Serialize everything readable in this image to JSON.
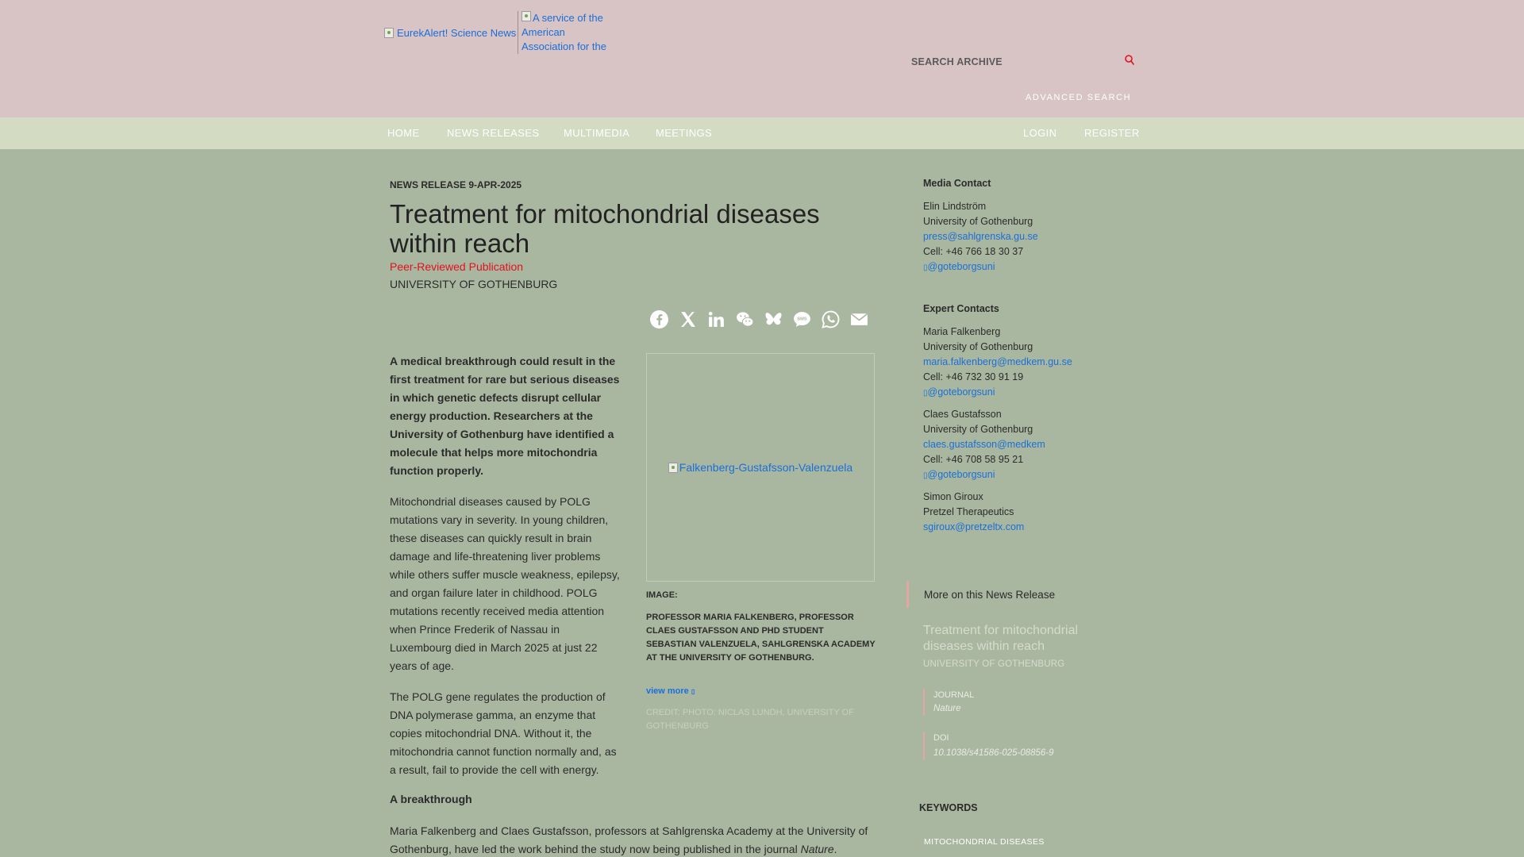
{
  "header": {
    "logo_alt": "EurekAlert! Science News",
    "aaas_alt": "A service of the American Association for the",
    "search_label": "SEARCH ARCHIVE",
    "advanced_search": "ADVANCED SEARCH"
  },
  "nav": {
    "home": "HOME",
    "news_releases": "NEWS RELEASES",
    "multimedia": "MULTIMEDIA",
    "meetings": "MEETINGS",
    "login": "LOGIN",
    "register": "REGISTER"
  },
  "article": {
    "meta": "NEWS RELEASE 9-APR-2025",
    "title": "Treatment for mitochondrial diseases within reach",
    "peer_reviewed": "Peer-Reviewed Publication",
    "institution": "UNIVERSITY OF GOTHENBURG",
    "lead": "A medical breakthrough could result in the first treatment for rare but serious diseases in which genetic defects disrupt cellular energy production. Researchers at the University of Gothenburg have identified a molecule that helps more mitochondria function properly.",
    "para1": "Mitochondrial diseases caused by POLG mutations vary in severity. In young children, these diseases can quickly result in brain damage and life-threatening liver problems while others suffer muscle weakness, epilepsy, and organ failure later in childhood. POLG mutations recently received media attention when Prince Frederik of Nassau in Luxembourg died in March 2025 at just 22 years of age.",
    "para2": "The POLG gene regulates the production of DNA polymerase gamma, an enzyme that copies mitochondrial DNA. Without it, the mitochondria cannot function normally and, as a result, fail to provide the cell with energy.",
    "subheading": "A breakthrough",
    "para3_start": "Maria Falkenberg and Claes Gustafsson, professors at Sahlgrenska Academy at the University of Gothenburg, have led the work behind the study now being published in the journal ",
    "para3_journal": "Nature",
    "para3_end": "."
  },
  "share": {
    "icons": [
      "facebook-icon",
      "x-icon",
      "linkedin-icon",
      "wechat-icon",
      "bluesky-icon",
      "sms-icon",
      "whatsapp-icon",
      "email-icon"
    ]
  },
  "image": {
    "alt": "Falkenberg-Gustafsson-Valenzuela",
    "label": "IMAGE:",
    "caption": "PROFESSOR MARIA FALKENBERG, PROFESSOR CLAES GUSTAFSSON AND PHD STUDENT SEBASTIAN VALENZUELA, SAHLGRENSKA ACADEMY AT THE UNIVERSITY OF GOTHENBURG.",
    "view_more": "view more",
    "credit": "CREDIT: PHOTO: NICLAS LUNDH, UNIVERSITY OF GOTHENBURG"
  },
  "sidebar": {
    "media_contact_heading": "Media Contact",
    "media_contact": {
      "name": "Elin Lindström",
      "org": "University of Gothenburg",
      "email": "press@sahlgrenska.gu.se",
      "cell": "Cell: +46 766 18 30 37",
      "twitter": "@goteborgsuni"
    },
    "expert_heading": "Expert Contacts",
    "experts": [
      {
        "name": "Maria Falkenberg",
        "org": "University of Gothenburg",
        "email": "maria.falkenberg@medkem.gu.se",
        "cell": "Cell: +46 732 30 91 19",
        "twitter": "@goteborgsuni"
      },
      {
        "name": "Claes Gustafsson",
        "org": "University of Gothenburg",
        "email": "claes.gustafsson@medkem",
        "cell": "Cell: +46 708 58 95 21",
        "twitter": "@goteborgsuni"
      },
      {
        "name": "Simon Giroux",
        "org": "Pretzel Therapeutics",
        "email": "sgiroux@pretzeltx.com"
      }
    ],
    "more_heading": "More on this News Release",
    "more_title": "Treatment for mitochondrial diseases within reach",
    "more_institution": "UNIVERSITY OF GOTHENBURG",
    "journal_label": "JOURNAL",
    "journal_value": "Nature",
    "doi_label": "DOI",
    "doi_value": "10.1038/s41586-025-08856-9",
    "keywords_heading": "KEYWORDS",
    "keyword": "MITOCHONDRIAL DISEASES"
  },
  "colors": {
    "page_bg": "#aab7a0",
    "header_bg": "#d8c4c4",
    "nav_bg": "#d3dcc3",
    "link": "#1a6fd8",
    "accent_red": "#e3111e"
  }
}
